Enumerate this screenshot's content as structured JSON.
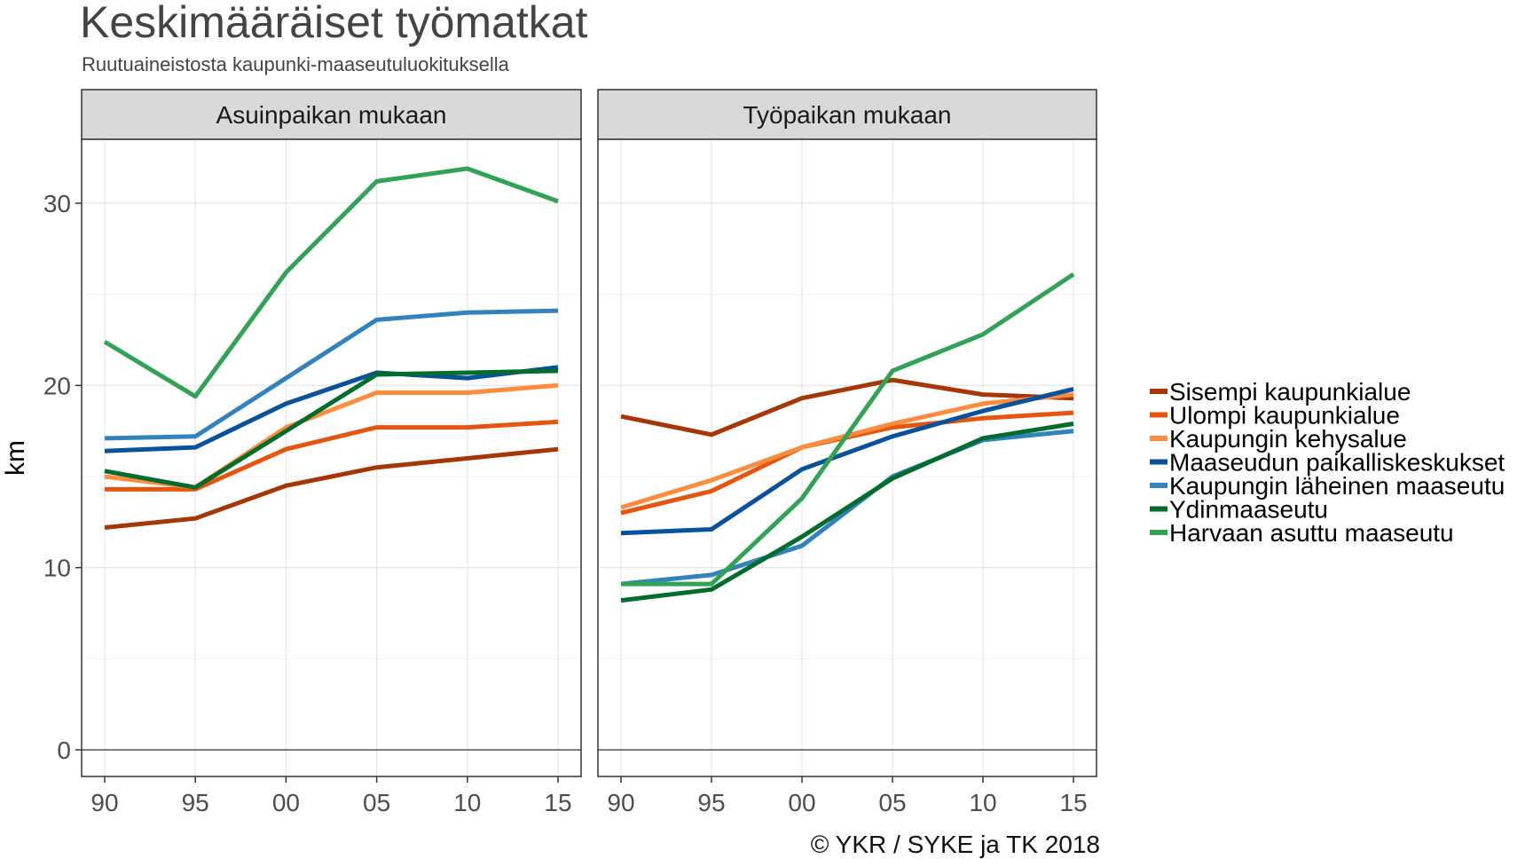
{
  "chart_data": {
    "type": "line",
    "title": "Keskimääräiset työmatkat",
    "subtitle": "Ruutuaineistosta kaupunki-maaseutuluokituksella",
    "caption": "© YKR / SYKE ja TK 2018",
    "ylabel": "km",
    "xlabel": "",
    "ylim": [
      0,
      33
    ],
    "yticks": [
      0,
      10,
      20,
      30
    ],
    "x": [
      "90",
      "95",
      "00",
      "05",
      "10",
      "15"
    ],
    "grid": true,
    "legend_position": "right",
    "series_meta": [
      {
        "name": "Sisempi kaupunkialue",
        "color": "#a63603"
      },
      {
        "name": "Ulompi kaupunkialue",
        "color": "#e6550d"
      },
      {
        "name": "Kaupungin kehysalue",
        "color": "#fd8d3c"
      },
      {
        "name": "Maaseudun paikalliskeskukset",
        "color": "#08519c"
      },
      {
        "name": "Kaupungin läheinen maaseutu",
        "color": "#3182bd"
      },
      {
        "name": "Ydinmaaseutu",
        "color": "#006d2c"
      },
      {
        "name": "Harvaan asuttu maaseutu",
        "color": "#31a354"
      }
    ],
    "panels": [
      {
        "label": "Asuinpaikan mukaan",
        "series": [
          {
            "name": "Sisempi kaupunkialue",
            "values": [
              12.2,
              12.7,
              14.5,
              15.5,
              16.0,
              16.5
            ]
          },
          {
            "name": "Ulompi kaupunkialue",
            "values": [
              14.3,
              14.3,
              16.5,
              17.7,
              17.7,
              18.0
            ]
          },
          {
            "name": "Kaupungin kehysalue",
            "values": [
              15.0,
              14.4,
              17.7,
              19.6,
              19.6,
              20.0
            ]
          },
          {
            "name": "Maaseudun paikalliskeskukset",
            "values": [
              16.4,
              16.6,
              19.0,
              20.7,
              20.4,
              21.0
            ]
          },
          {
            "name": "Kaupungin läheinen maaseutu",
            "values": [
              17.1,
              17.2,
              20.4,
              23.6,
              24.0,
              24.1
            ]
          },
          {
            "name": "Ydinmaaseutu",
            "values": [
              15.3,
              14.4,
              17.5,
              20.6,
              20.7,
              20.8
            ]
          },
          {
            "name": "Harvaan asuttu maaseutu",
            "values": [
              22.4,
              19.4,
              26.2,
              31.2,
              31.9,
              30.1
            ]
          }
        ]
      },
      {
        "label": "Työpaikan mukaan",
        "series": [
          {
            "name": "Sisempi kaupunkialue",
            "values": [
              18.3,
              17.3,
              19.3,
              20.3,
              19.5,
              19.3
            ]
          },
          {
            "name": "Ulompi kaupunkialue",
            "values": [
              13.0,
              14.2,
              16.6,
              17.7,
              18.2,
              18.5
            ]
          },
          {
            "name": "Kaupungin kehysalue",
            "values": [
              13.3,
              14.8,
              16.6,
              17.9,
              19.0,
              19.5
            ]
          },
          {
            "name": "Maaseudun paikalliskeskukset",
            "values": [
              11.9,
              12.1,
              15.4,
              17.2,
              18.6,
              19.8
            ]
          },
          {
            "name": "Kaupungin läheinen maaseutu",
            "values": [
              9.1,
              9.6,
              11.2,
              15.0,
              17.0,
              17.5
            ]
          },
          {
            "name": "Ydinmaaseutu",
            "values": [
              8.2,
              8.8,
              11.7,
              14.9,
              17.1,
              17.9
            ]
          },
          {
            "name": "Harvaan asuttu maaseutu",
            "values": [
              9.1,
              9.1,
              13.8,
              20.8,
              22.8,
              26.1
            ]
          }
        ]
      }
    ]
  }
}
